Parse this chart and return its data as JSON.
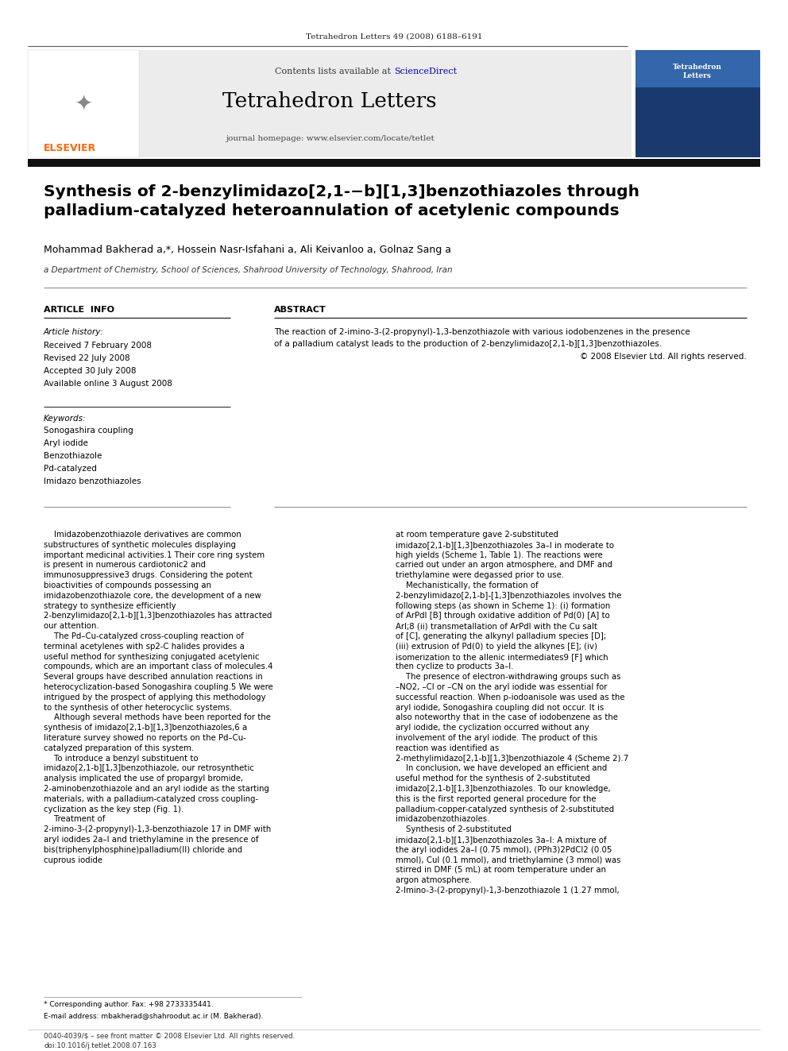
{
  "page_width": 9.92,
  "page_height": 13.23,
  "bg_color": "#ffffff",
  "top_journal_ref": "Tetrahedron Letters 49 (2008) 6188–6191",
  "sciencedirect_color": "#0000cc",
  "journal_title": "Tetrahedron Letters",
  "journal_homepage": "journal homepage: www.elsevier.com/locate/tetlet",
  "elsevier_color": "#ff6600",
  "article_title": "Synthesis of 2-benzylimidazo[2,1-b][1,3]benzothiazoles through\npalladium-catalyzed heteroannulation of acetylenic compounds",
  "authors": "Mohammad Bakherad a,*, Hossein Nasr-Isfahani a, Ali Keivanloo a, Golnaz Sang a",
  "affiliation": "a Department of Chemistry, School of Sciences, Shahrood University of Technology, Shahrood, Iran",
  "section_article_info": "ARTICLE  INFO",
  "section_abstract": "ABSTRACT",
  "article_history_label": "Article history:",
  "history_lines": [
    "Received 7 February 2008",
    "Revised 22 July 2008",
    "Accepted 30 July 2008",
    "Available online 3 August 2008"
  ],
  "keywords_label": "Keywords:",
  "keywords": [
    "Sonogashira coupling",
    "Aryl iodide",
    "Benzothiazole",
    "Pd-catalyzed",
    "Imidazo benzothiazoles"
  ],
  "abstract_line1": "The reaction of 2-imino-3-(2-propynyl)-1,3-benzothiazole with various iodobenzenes in the presence",
  "abstract_line2": "of a palladium catalyst leads to the production of 2-benzylimidazo[2,1-b][1,3]benzothiazoles.",
  "abstract_line3": "© 2008 Elsevier Ltd. All rights reserved.",
  "body_col1": "    Imidazobenzothiazole derivatives are common substructures of synthetic molecules displaying important medicinal activities.1 Their core ring system is present in numerous cardiotonic2 and immunosuppressive3 drugs. Considering the potent bioactivities of compounds possessing an imidazobenzothiazole core, the development of a new strategy to synthesize efficiently 2-benzylimidazo[2,1-b][1,3]benzothiazoles has attracted our attention.\n    The Pd–Cu-catalyzed cross-coupling reaction of terminal acetylenes with sp2-C halides provides a useful method for synthesizing conjugated acetylenic compounds, which are an important class of molecules.4 Several groups have described annulation reactions in heterocyclization-based Sonogashira coupling.5 We were intrigued by the prospect of applying this methodology to the synthesis of other heterocyclic systems.\n    Although several methods have been reported for the synthesis of imidazo[2,1-b][1,3]benzothiazoles,6 a literature survey showed no reports on the Pd–Cu-catalyzed preparation of this system.\n    To introduce a benzyl substituent to imidazo[2,1-b][1,3]benzothiazole, our retrosynthetic analysis implicated the use of propargyl bromide, 2-aminobenzothiazole and an aryl iodide as the starting materials, with a palladium-catalyzed cross coupling-cyclization as the key step (Fig. 1).\n    Treatment of 2-imino-3-(2-propynyl)-1,3-benzothiazole 17 in DMF with aryl iodides 2a–l and triethylamine in the presence of bis(triphenylphosphine)palladium(II) chloride and cuprous iodide",
  "body_col2": "at room temperature gave 2-substituted imidazo[2,1-b][1,3]benzothiazoles 3a–l in moderate to high yields (Scheme 1, Table 1). The reactions were carried out under an argon atmosphere, and DMF and triethylamine were degassed prior to use.\n    Mechanistically, the formation of 2-benzylimidazo[2,1-b]-[1,3]benzothiazoles involves the following steps (as shown in Scheme 1): (i) formation of ArPdI [B] through oxidative addition of Pd(0) [A] to ArI;8 (ii) transmetallation of ArPdI with the Cu salt of [C], generating the alkynyl palladium species [D]; (iii) extrusion of Pd(0) to yield the alkynes [E]; (iv) isomerization to the allenic intermediates9 [F] which then cyclize to products 3a–l.\n    The presence of electron-withdrawing groups such as –NO2, –Cl or –CN on the aryl iodide was essential for successful reaction. When p-iodoanisole was used as the aryl iodide, Sonogashira coupling did not occur. It is also noteworthy that in the case of iodobenzene as the aryl iodide, the cyclization occurred without any involvement of the aryl iodide. The product of this reaction was identified as 2-methylimidazo[2,1-b][1,3]benzothiazole 4 (Scheme 2).7\n    In conclusion, we have developed an efficient and useful method for the synthesis of 2-substituted imidazo[2,1-b][1,3]benzothiazoles. To our knowledge, this is the first reported general procedure for the palladium-copper-catalyzed synthesis of 2-substituted imidazobenzothiazoles.\n    Synthesis of 2-substituted imidazo[2,1-b][1,3]benzothiazoles 3a–l: A mixture of the aryl iodides 2a–l (0.75 mmol), (PPh3)2PdCl2 (0.05 mmol), CuI (0.1 mmol), and triethylamine (3 mmol) was stirred in DMF (5 mL) at room temperature under an argon atmosphere. 2-Imino-3-(2-propynyl)-1,3-benzothiazole 1 (1.27 mmol,",
  "footnote_star": "* Corresponding author. Fax: +98 2733335441.",
  "footnote_email": "E-mail address: mbakherad@shahroodut.ac.ir (M. Bakherad).",
  "footer_issn": "0040-4039/$ – see front matter © 2008 Elsevier Ltd. All rights reserved.",
  "footer_doi": "doi:10.1016/j.tetlet.2008.07.163"
}
